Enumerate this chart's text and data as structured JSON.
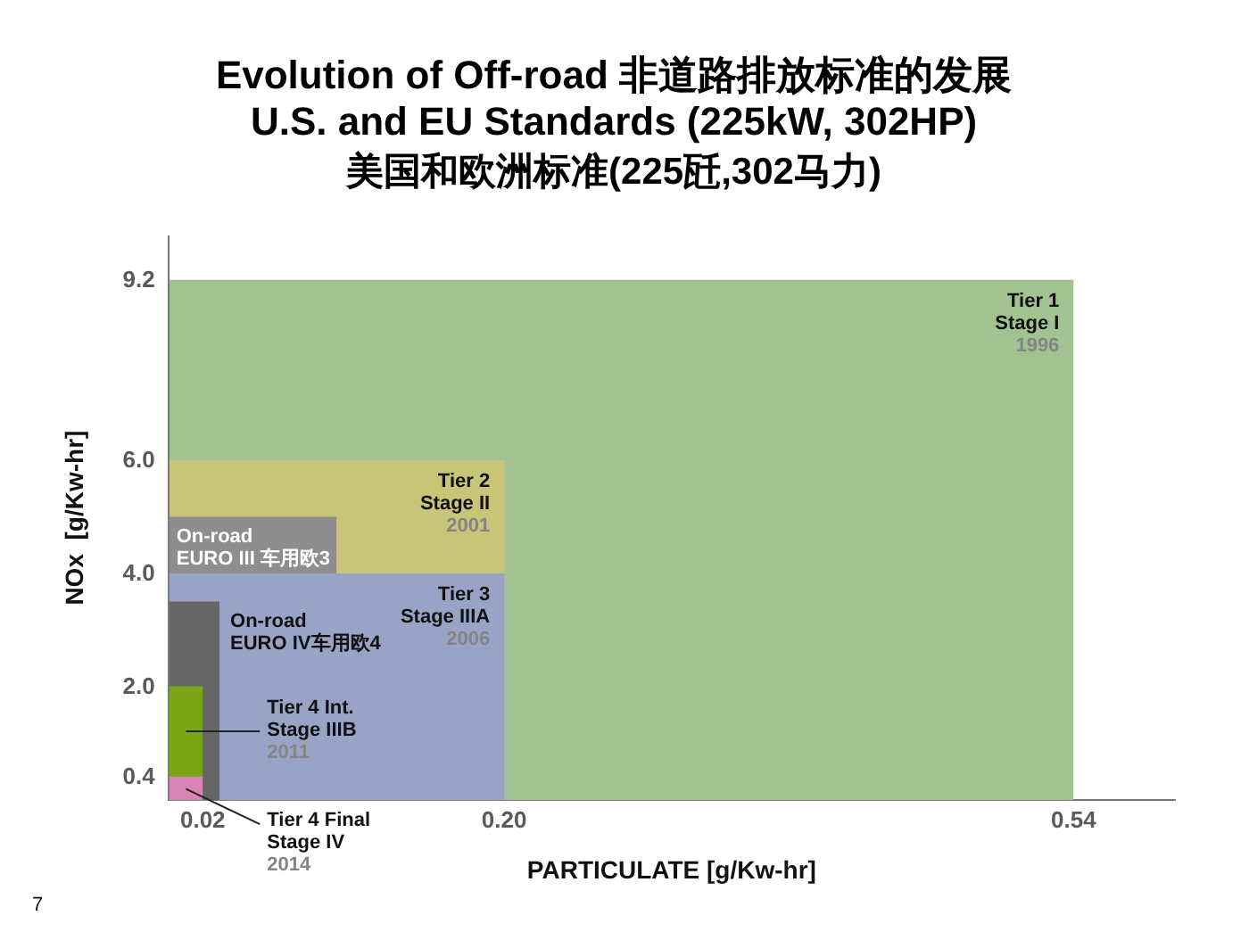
{
  "chart_data": {
    "type": "area",
    "title": "Evolution of Off-road 非道路排放标准的发展\nU.S. and EU Standards (225kW, 302HP)",
    "subtitle": "美国和欧洲标准(225瓩,302马力)",
    "xlabel": "PARTICULATE [g/Kw-hr]",
    "ylabel": "NOx  [g/Kw-hr]",
    "xlim": [
      0,
      0.6
    ],
    "xticks": [
      0.02,
      {
        "value": 0.2,
        "label": "0.20"
      },
      0.54
    ],
    "ylim": [
      0,
      10
    ],
    "yticks": [
      0.4,
      {
        "value": 2,
        "label": "2.0"
      },
      {
        "value": 4,
        "label": "4.0"
      },
      {
        "value": 6,
        "label": "6.0"
      },
      9.2
    ],
    "series": [
      {
        "name": "Tier 1\nStage I\n1996",
        "color": "#a2c291",
        "x": [
          0,
          0.54
        ],
        "values": [
          9.2,
          9.2
        ]
      },
      {
        "name": "Tier 2\nStage II\n2001",
        "color": "#c8c578",
        "x": [
          0,
          0.2
        ],
        "values": [
          6,
          6
        ]
      },
      {
        "name": "On-road\nEURO III 车用欧3",
        "color": "#8e8e8e",
        "x": [
          0,
          0.1
        ],
        "values": [
          5,
          5
        ]
      },
      {
        "name": "Tier 3\nStage IIIA\n2006",
        "color": "#98a3c6",
        "x": [
          0,
          0.2
        ],
        "values": [
          4,
          4
        ]
      },
      {
        "name": "On-road\nEURO IV车用欧4",
        "color": "#666666",
        "x": [
          0,
          0.03
        ],
        "values": [
          3.5,
          3.5
        ]
      },
      {
        "name": "Tier 4 Int.\nStage IIIB\n2011",
        "color": "#7aa616",
        "x": [
          0,
          0.02
        ],
        "values": [
          2,
          2
        ]
      },
      {
        "name": "Tier 4 Final\nStage IV\n2014",
        "color": "#d884b4",
        "x": [
          0,
          0.02
        ],
        "values": [
          0.4,
          0.4
        ]
      }
    ],
    "annotations": [
      "7"
    ]
  }
}
